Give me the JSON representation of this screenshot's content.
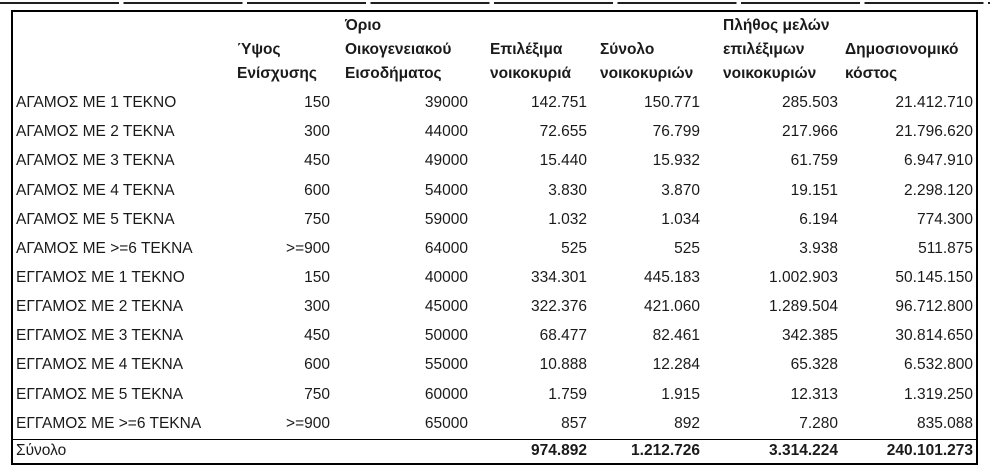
{
  "page": {
    "background_color": "#ffffff",
    "border_color": "#000000",
    "text_color": "#1a1a1a"
  },
  "table": {
    "columns": [
      "",
      "Ύψος Ενίσχυσης",
      "Όριο Οικογενειακού Εισοδήματος",
      "Επιλέξιμα νοικοκυριά",
      "Σύνολο νοικοκυριών",
      "Πλήθος μελών επιλέξιμων νοικοκυριών",
      "Δημοσιονομικό κόστος"
    ],
    "rows": [
      [
        "ΑΓΑΜΟΣ ΜΕ 1 ΤΕΚΝΟ",
        "150",
        "39000",
        "142.751",
        "150.771",
        "285.503",
        "21.412.710"
      ],
      [
        "ΑΓΑΜΟΣ ΜΕ 2 ΤΕΚΝΑ",
        "300",
        "44000",
        "72.655",
        "76.799",
        "217.966",
        "21.796.620"
      ],
      [
        "ΑΓΑΜΟΣ ΜΕ 3 ΤΕΚΝΑ",
        "450",
        "49000",
        "15.440",
        "15.932",
        "61.759",
        "6.947.910"
      ],
      [
        "ΑΓΑΜΟΣ ΜΕ 4 ΤΕΚΝΑ",
        "600",
        "54000",
        "3.830",
        "3.870",
        "19.151",
        "2.298.120"
      ],
      [
        "ΑΓΑΜΟΣ ΜΕ 5 ΤΕΚΝΑ",
        "750",
        "59000",
        "1.032",
        "1.034",
        "6.194",
        "774.300"
      ],
      [
        "ΑΓΑΜΟΣ ΜΕ >=6 ΤΕΚΝΑ",
        ">=900",
        "64000",
        "525",
        "525",
        "3.938",
        "511.875"
      ],
      [
        "ΕΓΓΑΜΟΣ ΜΕ 1 ΤΕΚΝΟ",
        "150",
        "40000",
        "334.301",
        "445.183",
        "1.002.903",
        "50.145.150"
      ],
      [
        "ΕΓΓΑΜΟΣ ΜΕ 2 ΤΕΚΝΑ",
        "300",
        "45000",
        "322.376",
        "421.060",
        "1.289.504",
        "96.712.800"
      ],
      [
        "ΕΓΓΑΜΟΣ ΜΕ 3 ΤΕΚΝΑ",
        "450",
        "50000",
        "68.477",
        "82.461",
        "342.385",
        "30.814.650"
      ],
      [
        "ΕΓΓΑΜΟΣ ΜΕ 4 ΤΕΚΝΑ",
        "600",
        "55000",
        "10.888",
        "12.284",
        "65.328",
        "6.532.800"
      ],
      [
        "ΕΓΓΑΜΟΣ ΜΕ 5 ΤΕΚΝΑ",
        "750",
        "60000",
        "1.759",
        "1.915",
        "12.313",
        "1.319.250"
      ],
      [
        "ΕΓΓΑΜΟΣ ΜΕ >=6 ΤΕΚΝΑ",
        ">=900",
        "65000",
        "857",
        "892",
        "7.280",
        "835.088"
      ]
    ],
    "total": [
      "Σύνολο",
      "",
      "",
      "974.892",
      "1.212.726",
      "3.314.224",
      "240.101.273"
    ]
  }
}
